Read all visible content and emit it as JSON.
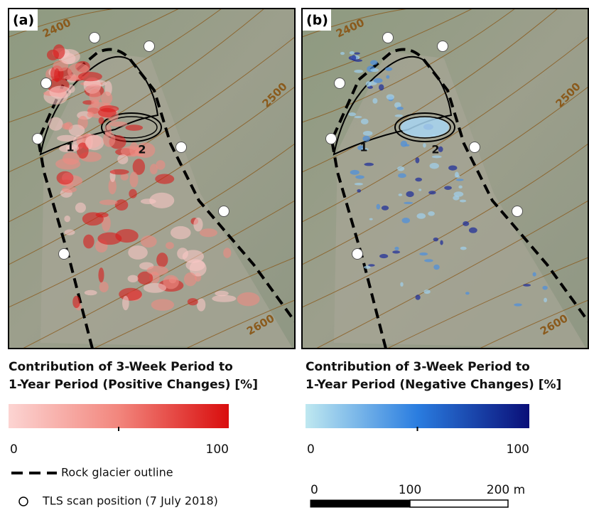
{
  "panels": [
    {
      "label": "(a)",
      "contours": [
        "2400",
        "2500",
        "2600"
      ],
      "regions": [
        "1",
        "2"
      ],
      "legend_title": [
        "Contribution of 3-Week Period to",
        "1-Year Period (Positive Changes) [%]"
      ],
      "colorbar": {
        "min": 0,
        "max": 100
      }
    },
    {
      "label": "(b)",
      "contours": [
        "2400",
        "2500",
        "2600"
      ],
      "regions": [
        "1",
        "2"
      ],
      "legend_title": [
        "Contribution of 3-Week Period to",
        "1-Year Period (Negative Changes) [%]"
      ],
      "colorbar": {
        "min": 0,
        "max": 100
      }
    }
  ],
  "legend": {
    "outline": "Rock glacier outline",
    "scan": "TLS scan position (7 July 2018)"
  },
  "scale_bar": {
    "ticks": [
      "0",
      "100",
      "200 m"
    ]
  }
}
